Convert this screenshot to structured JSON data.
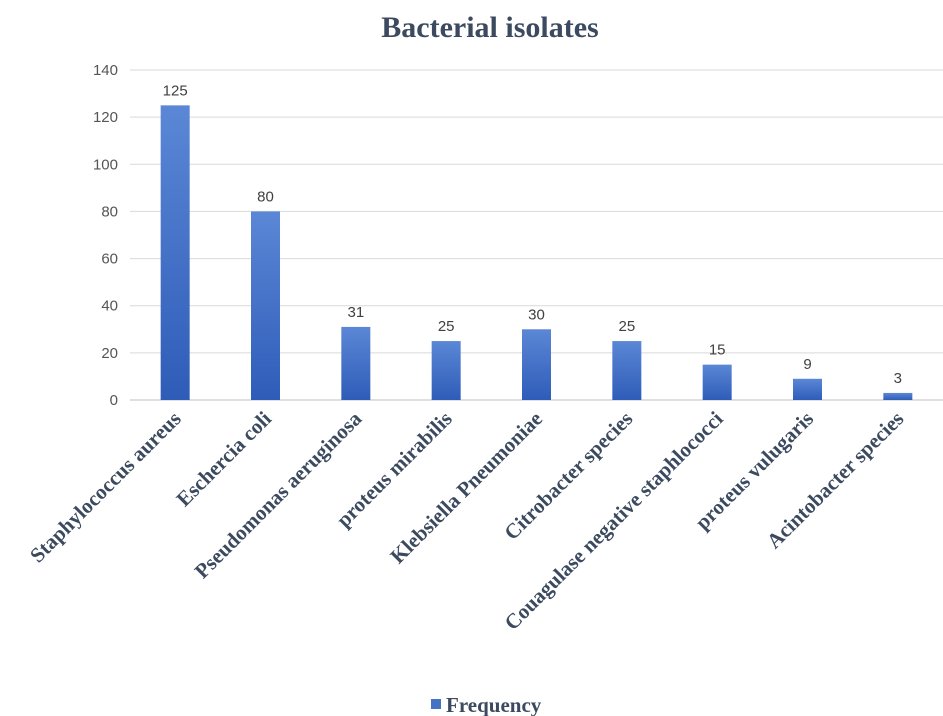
{
  "chart_data": {
    "type": "bar",
    "title": "Bacterial isolates",
    "xlabel": "",
    "ylabel": "",
    "ylim": [
      0,
      140
    ],
    "yticks": [
      0,
      20,
      40,
      60,
      80,
      100,
      120,
      140
    ],
    "grid": true,
    "legend_position": "bottom",
    "categories": [
      "Staphylococcus aureus",
      "Eschercia coli",
      "Pseudomonas aeruginosa",
      "proteus mirabilis",
      "Klebsiella Pneumoniae",
      "Citrobacter species",
      "Couagulase negative staphlococci",
      "proteus vulugaris",
      "Acintobacter species"
    ],
    "series": [
      {
        "name": "Frequency",
        "color": "#4472c4",
        "values": [
          125,
          80,
          31,
          25,
          30,
          25,
          15,
          9,
          3
        ]
      }
    ]
  }
}
